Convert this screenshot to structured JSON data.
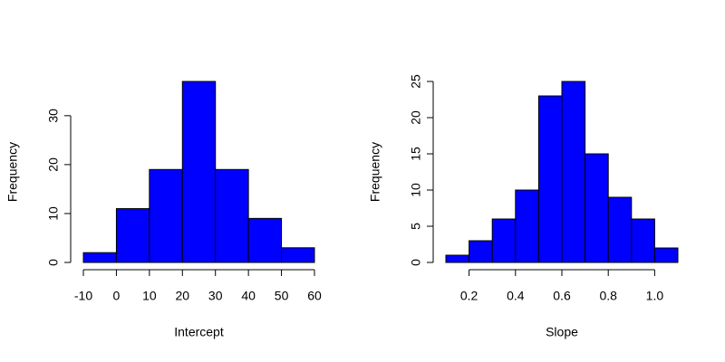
{
  "chart_data": [
    {
      "type": "histogram",
      "xlabel": "Intercept",
      "ylabel": "Frequency",
      "bins": [
        -10,
        0,
        10,
        20,
        30,
        40,
        50,
        60
      ],
      "counts": [
        2,
        11,
        19,
        37,
        19,
        9,
        3
      ],
      "color": "#0000ff",
      "xlim": [
        -10,
        60
      ],
      "ylim": [
        0,
        37
      ],
      "xticks": [
        -10,
        0,
        10,
        20,
        30,
        40,
        50,
        60
      ],
      "yticks": [
        0,
        10,
        20,
        30
      ]
    },
    {
      "type": "histogram",
      "xlabel": "Slope",
      "ylabel": "Frequency",
      "bins": [
        0.1,
        0.2,
        0.3,
        0.4,
        0.5,
        0.6,
        0.7,
        0.8,
        0.9,
        1.0,
        1.1
      ],
      "counts": [
        1,
        3,
        6,
        10,
        23,
        25,
        15,
        9,
        6,
        2
      ],
      "color": "#0000ff",
      "xlim": [
        0.1,
        1.1
      ],
      "ylim": [
        0,
        25
      ],
      "xticks": [
        0.2,
        0.4,
        0.6,
        0.8,
        {
          "value": 1,
          "label": "1.0"
        }
      ],
      "yticks": [
        0,
        5,
        10,
        15,
        20,
        25
      ]
    }
  ]
}
